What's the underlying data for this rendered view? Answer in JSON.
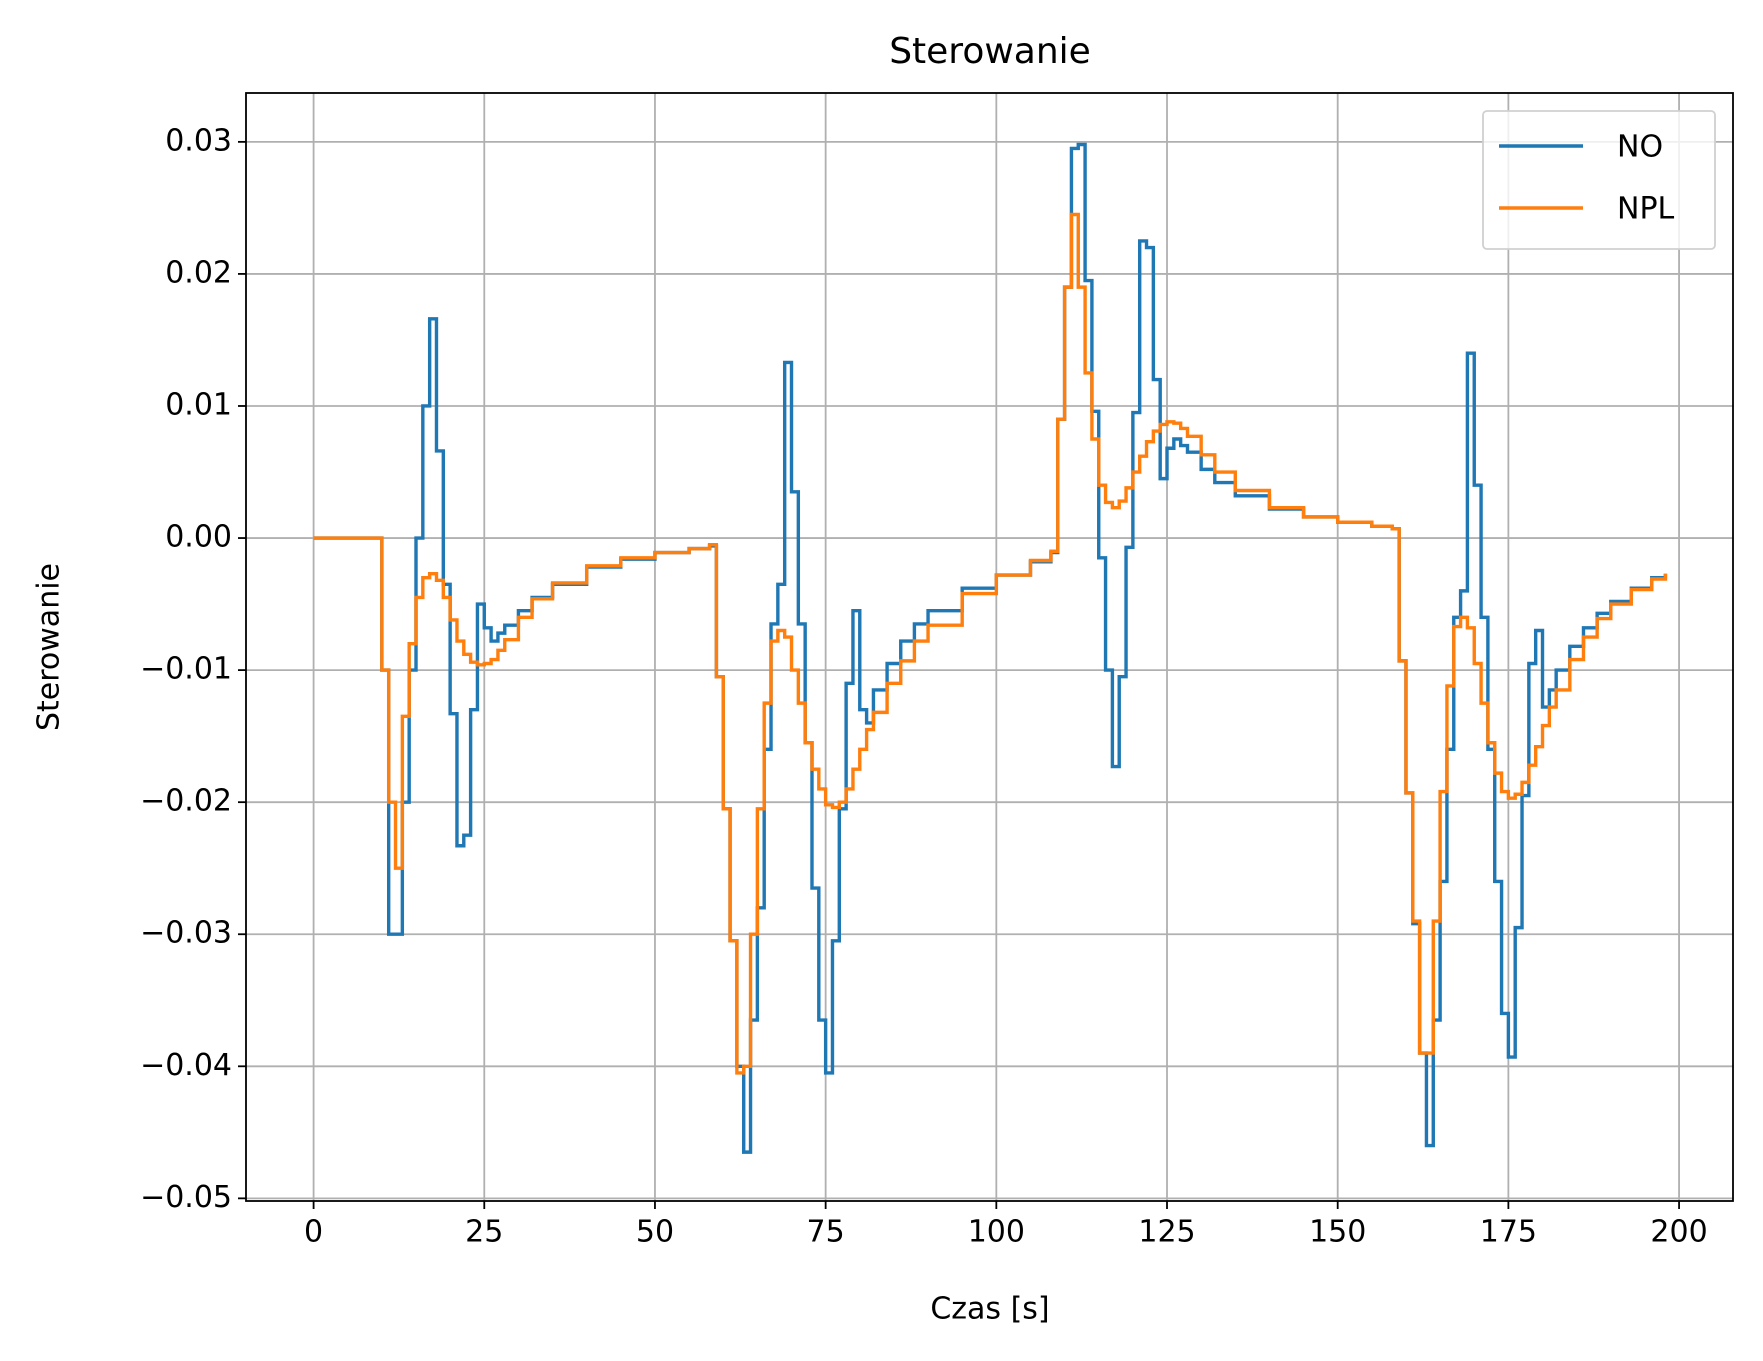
{
  "chart_data": {
    "type": "line",
    "step": "post",
    "title": "Sterowanie",
    "xlabel": "Czas [s]",
    "ylabel": "Sterowanie",
    "xlim": [
      -9.9,
      207.9
    ],
    "ylim": [
      -0.0502,
      0.0337
    ],
    "xticks": [
      0,
      25,
      50,
      75,
      100,
      125,
      150,
      175,
      200
    ],
    "yticks": [
      {
        "value": 0.03,
        "label": "0.03"
      },
      {
        "value": 0.02,
        "label": "0.02"
      },
      {
        "value": 0.01,
        "label": "0.01"
      },
      {
        "value": 0,
        "label": "0.00"
      },
      {
        "value": -0.01,
        "label": "−0.01"
      },
      {
        "value": -0.02,
        "label": "−0.02"
      },
      {
        "value": -0.03,
        "label": "−0.03"
      },
      {
        "value": -0.04,
        "label": "−0.04"
      },
      {
        "value": -0.05,
        "label": "−0.05"
      }
    ],
    "grid": true,
    "legend": "upper right",
    "x": [
      0,
      5,
      9,
      10,
      11,
      12,
      13,
      14,
      15,
      16,
      17,
      18,
      19,
      20,
      21,
      22,
      23,
      24,
      25,
      26,
      27,
      28,
      30,
      32,
      35,
      40,
      45,
      50,
      55,
      58,
      59,
      60,
      61,
      62,
      63,
      64,
      65,
      66,
      67,
      68,
      69,
      70,
      71,
      72,
      73,
      74,
      75,
      76,
      77,
      78,
      79,
      80,
      81,
      82,
      84,
      86,
      88,
      90,
      95,
      100,
      105,
      108,
      109,
      110,
      111,
      112,
      113,
      114,
      115,
      116,
      117,
      118,
      119,
      120,
      121,
      122,
      123,
      124,
      125,
      126,
      127,
      128,
      130,
      132,
      135,
      140,
      145,
      150,
      155,
      158,
      159,
      160,
      161,
      162,
      163,
      164,
      165,
      166,
      167,
      168,
      169,
      170,
      171,
      172,
      173,
      174,
      175,
      176,
      177,
      178,
      179,
      180,
      181,
      182,
      184,
      186,
      188,
      190,
      193,
      196,
      198
    ],
    "series": [
      {
        "name": "NO",
        "color": "#1f77b4",
        "values": [
          0,
          0,
          0,
          -0.01,
          -0.03,
          -0.03,
          -0.02,
          -0.01,
          0.0,
          0.01,
          0.0166,
          0.0066,
          -0.0035,
          -0.0133,
          -0.0233,
          -0.0225,
          -0.013,
          -0.005,
          -0.0068,
          -0.0078,
          -0.0072,
          -0.0066,
          -0.0055,
          -0.0045,
          -0.0035,
          -0.0022,
          -0.0016,
          -0.0011,
          -0.0008,
          -0.0006,
          -0.0105,
          -0.0205,
          -0.0305,
          -0.04,
          -0.0465,
          -0.0365,
          -0.028,
          -0.016,
          -0.0065,
          -0.0035,
          0.0133,
          0.0035,
          -0.0065,
          -0.0155,
          -0.0265,
          -0.0365,
          -0.0405,
          -0.0305,
          -0.0205,
          -0.011,
          -0.0055,
          -0.013,
          -0.014,
          -0.0115,
          -0.0095,
          -0.0078,
          -0.0065,
          -0.0055,
          -0.0038,
          -0.0028,
          -0.0018,
          -0.0011,
          0.009,
          0.019,
          0.0295,
          0.0298,
          0.0195,
          0.0096,
          -0.0015,
          -0.01,
          -0.0173,
          -0.0105,
          -0.0007,
          0.0095,
          0.0225,
          0.022,
          0.012,
          0.0045,
          0.0068,
          0.0075,
          0.007,
          0.0065,
          0.0052,
          0.0042,
          0.0032,
          0.0022,
          0.0016,
          0.0012,
          0.0009,
          0.0007,
          -0.0093,
          -0.0193,
          -0.0292,
          -0.039,
          -0.046,
          -0.0365,
          -0.026,
          -0.016,
          -0.006,
          -0.004,
          0.014,
          0.004,
          -0.006,
          -0.016,
          -0.026,
          -0.036,
          -0.0393,
          -0.0295,
          -0.0195,
          -0.0095,
          -0.007,
          -0.0128,
          -0.0115,
          -0.01,
          -0.0082,
          -0.0068,
          -0.0057,
          -0.0048,
          -0.0038,
          -0.003,
          -0.0027
        ]
      },
      {
        "name": "NPL",
        "color": "#ff7f0e",
        "values": [
          0,
          0,
          0,
          -0.01,
          -0.02,
          -0.025,
          -0.0135,
          -0.008,
          -0.0045,
          -0.003,
          -0.0027,
          -0.0032,
          -0.0045,
          -0.0062,
          -0.0078,
          -0.0088,
          -0.0094,
          -0.0096,
          -0.0095,
          -0.0092,
          -0.0085,
          -0.0077,
          -0.006,
          -0.0046,
          -0.0034,
          -0.0021,
          -0.0015,
          -0.0011,
          -0.0008,
          -0.0005,
          -0.0105,
          -0.0205,
          -0.0305,
          -0.0405,
          -0.04,
          -0.03,
          -0.0205,
          -0.0125,
          -0.0078,
          -0.007,
          -0.0075,
          -0.01,
          -0.0125,
          -0.0155,
          -0.0175,
          -0.019,
          -0.0202,
          -0.0204,
          -0.02,
          -0.019,
          -0.0175,
          -0.016,
          -0.0145,
          -0.0132,
          -0.011,
          -0.0093,
          -0.0078,
          -0.0066,
          -0.0042,
          -0.0028,
          -0.0017,
          -0.001,
          0.009,
          0.019,
          0.0245,
          0.019,
          0.0125,
          0.0075,
          0.004,
          0.0027,
          0.0023,
          0.0028,
          0.0038,
          0.005,
          0.0062,
          0.0073,
          0.0081,
          0.0086,
          0.0088,
          0.0087,
          0.0083,
          0.0077,
          0.0063,
          0.005,
          0.0036,
          0.0023,
          0.0016,
          0.0012,
          0.0009,
          0.0007,
          -0.0093,
          -0.0193,
          -0.029,
          -0.039,
          -0.039,
          -0.029,
          -0.0192,
          -0.0112,
          -0.0067,
          -0.006,
          -0.0068,
          -0.0095,
          -0.0125,
          -0.0155,
          -0.0178,
          -0.0192,
          -0.0197,
          -0.0194,
          -0.0185,
          -0.0172,
          -0.0158,
          -0.0142,
          -0.0128,
          -0.0115,
          -0.0092,
          -0.0075,
          -0.0061,
          -0.005,
          -0.0039,
          -0.0031,
          -0.0027
        ]
      }
    ]
  }
}
